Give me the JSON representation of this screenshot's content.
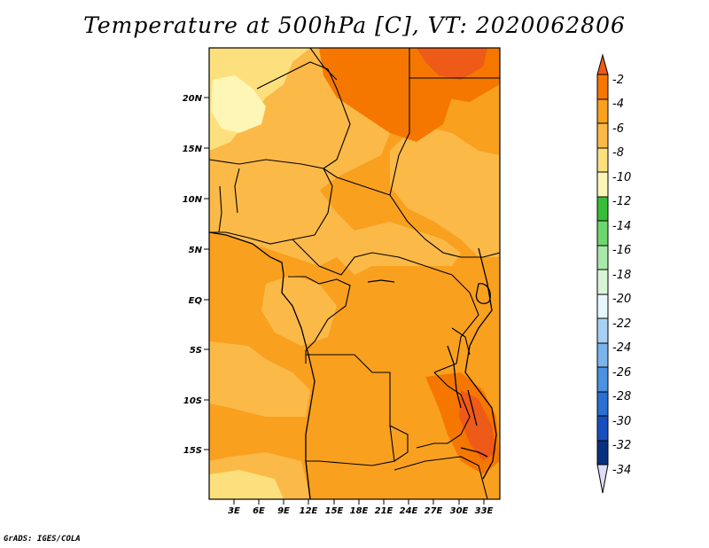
{
  "title": "Temperature at 500hPa [C], VT: 2020062806",
  "credit": "GrADS: IGES/COLA",
  "map": {
    "lat_labels": [
      "20N",
      "15N",
      "10N",
      "5N",
      "EQ",
      "5S",
      "10S",
      "15S"
    ],
    "lon_labels": [
      "3E",
      "6E",
      "9E",
      "12E",
      "15E",
      "18E",
      "21E",
      "24E",
      "27E",
      "30E",
      "33E"
    ]
  },
  "colorbar": {
    "labels": [
      "-2",
      "-4",
      "-6",
      "-8",
      "-10",
      "-12",
      "-14",
      "-16",
      "-18",
      "-20",
      "-22",
      "-24",
      "-26",
      "-28",
      "-30",
      "-32",
      "-34"
    ],
    "colors": {
      "above_-2": "#ee5a18",
      "-4_to_-2": "#f57700",
      "-6_to_-4": "#f9a01e",
      "-8_to_-6": "#fbb948",
      "-10_to_-8": "#fde07e",
      "-12_to_-10": "#fef6b6",
      "-14_to_-12": "#38bd38",
      "-16_to_-14": "#6ed66e",
      "-18_to_-16": "#a8e8a8",
      "-20_to_-18": "#d8f5d8",
      "-22_to_-20": "#e8f6fe",
      "-24_to_-22": "#a8d0f2",
      "-26_to_-24": "#7ab4ec",
      "-28_to_-26": "#4b92e0",
      "-30_to_-28": "#2a6fd2",
      "-32_to_-30": "#1650bf",
      "-34_to_-32": "#08307f",
      "below_-34": "#dcdcf6"
    }
  }
}
